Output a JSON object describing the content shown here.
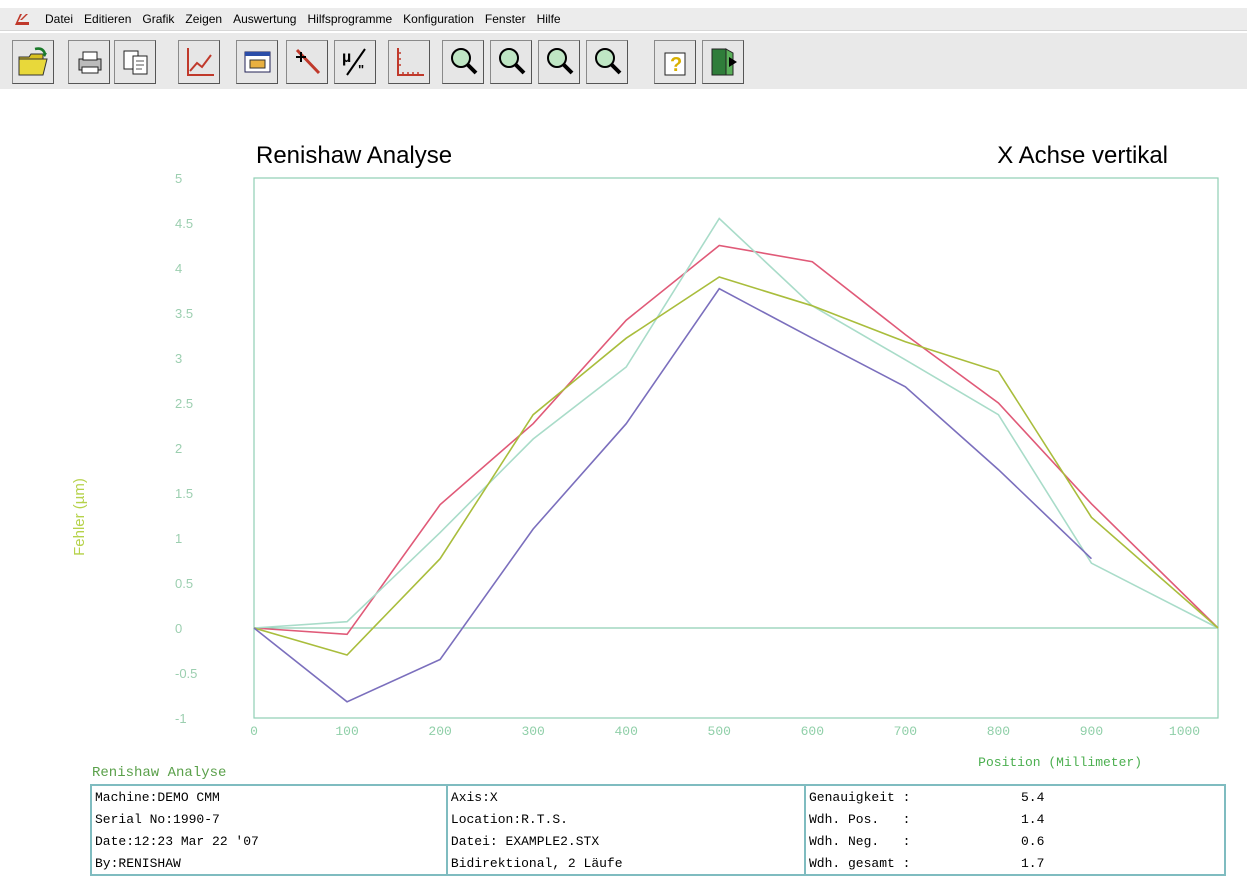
{
  "menu": {
    "items": [
      "Datei",
      "Editieren",
      "Grafik",
      "Zeigen",
      "Auswertung",
      "Hilfsprogramme",
      "Konfiguration",
      "Fenster",
      "Hilfe"
    ]
  },
  "toolbar": {
    "buttons": [
      "open-folder",
      "print",
      "copy",
      "chart-line",
      "report",
      "cursor-pointer",
      "micron-unit",
      "axis-scale",
      "zoom-1",
      "zoom-2",
      "zoom-3",
      "zoom-4",
      "help",
      "exit"
    ]
  },
  "chart_data": {
    "type": "line",
    "title": "Renishaw Analyse",
    "subtitle": "X Achse vertikal",
    "xlabel": "Position (Millimeter)",
    "ylabel": "Fehler (µm)",
    "xlim": [
      0,
      1036
    ],
    "ylim": [
      -1,
      5
    ],
    "x_ticks": [
      0,
      100,
      200,
      300,
      400,
      500,
      600,
      700,
      800,
      900,
      1000
    ],
    "y_ticks": [
      -1,
      -0.5,
      0,
      0.5,
      1,
      1.5,
      2,
      2.5,
      3,
      3.5,
      4,
      4.5,
      5
    ],
    "x": [
      0,
      100,
      200,
      300,
      400,
      500,
      600,
      700,
      800,
      900,
      1036
    ],
    "series": [
      {
        "color": "#e05a78",
        "values": [
          0,
          -0.07,
          1.37,
          2.27,
          3.42,
          4.25,
          4.07,
          3.26,
          2.5,
          1.38,
          0
        ]
      },
      {
        "color": "#a9dcc9",
        "values": [
          0,
          0.07,
          1.06,
          2.1,
          2.9,
          4.55,
          3.58,
          2.98,
          2.37,
          0.72,
          0
        ]
      },
      {
        "color": "#a9bd3c",
        "values": [
          0,
          -0.3,
          0.77,
          2.37,
          3.22,
          3.9,
          3.58,
          3.18,
          2.85,
          1.23,
          0
        ]
      },
      {
        "color": "#7b6fbd",
        "values": [
          0,
          -0.82,
          -0.35,
          1.1,
          2.27,
          3.77,
          3.22,
          2.68,
          1.76,
          0.77,
          null
        ]
      }
    ],
    "grid": false,
    "colors": {
      "axis": "#8fcfb5",
      "ticks": "#9ccfb0",
      "ylabel": "#b6d24a",
      "xlabel": "#4caf50"
    }
  },
  "info": {
    "title": "Renishaw Analyse",
    "col1": [
      "Machine:DEMO CMM",
      "Serial No:1990-7",
      "Date:12:23 Mar 22 '07",
      "By:RENISHAW"
    ],
    "col2": [
      "Axis:X",
      "Location:R.T.S.",
      "Datei: EXAMPLE2.STX",
      "Bidirektional, 2 Läufe"
    ],
    "col3": [
      {
        "label": "Genauigkeit :",
        "value": "5.4"
      },
      {
        "label": "Wdh. Pos.   :",
        "value": "1.4"
      },
      {
        "label": "Wdh. Neg.   :",
        "value": "0.6"
      },
      {
        "label": "Wdh. gesamt :",
        "value": "1.7"
      }
    ]
  }
}
